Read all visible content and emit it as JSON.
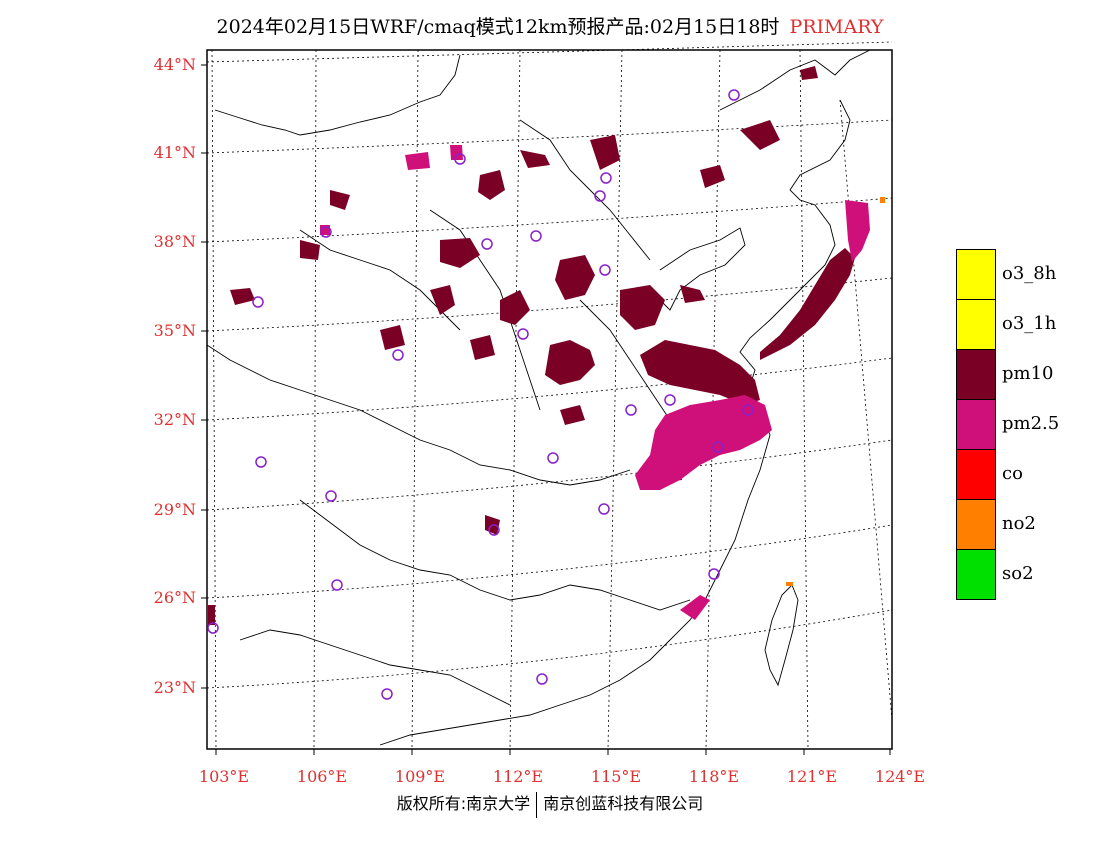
{
  "title": {
    "main": "2024年02月15日WRF/cmaq模式12km预报产品:02月15日18时",
    "tag": "PRIMARY"
  },
  "map": {
    "lat_labels": [
      "44°N",
      "41°N",
      "38°N",
      "35°N",
      "32°N",
      "29°N",
      "26°N",
      "23°N"
    ],
    "lon_labels": [
      "103°E",
      "106°E",
      "109°E",
      "112°E",
      "115°E",
      "118°E",
      "121°E",
      "124°E"
    ],
    "pollutant_colors": {
      "pm10": "#7a0026",
      "pm2.5": "#d0107a",
      "no2": "#ff7f00"
    },
    "station_marker_color": "#8a20c8"
  },
  "legend": {
    "items": [
      {
        "label": "o3_8h",
        "color": "#ffff00"
      },
      {
        "label": "o3_1h",
        "color": "#ffff00"
      },
      {
        "label": "pm10",
        "color": "#7a0026"
      },
      {
        "label": "pm2.5",
        "color": "#d0107a"
      },
      {
        "label": "co",
        "color": "#ff0000"
      },
      {
        "label": "no2",
        "color": "#ff7f00"
      },
      {
        "label": "so2",
        "color": "#00e000"
      }
    ]
  },
  "copyright": {
    "left": "版权所有:南京大学",
    "right": "南京创蓝科技有限公司"
  }
}
